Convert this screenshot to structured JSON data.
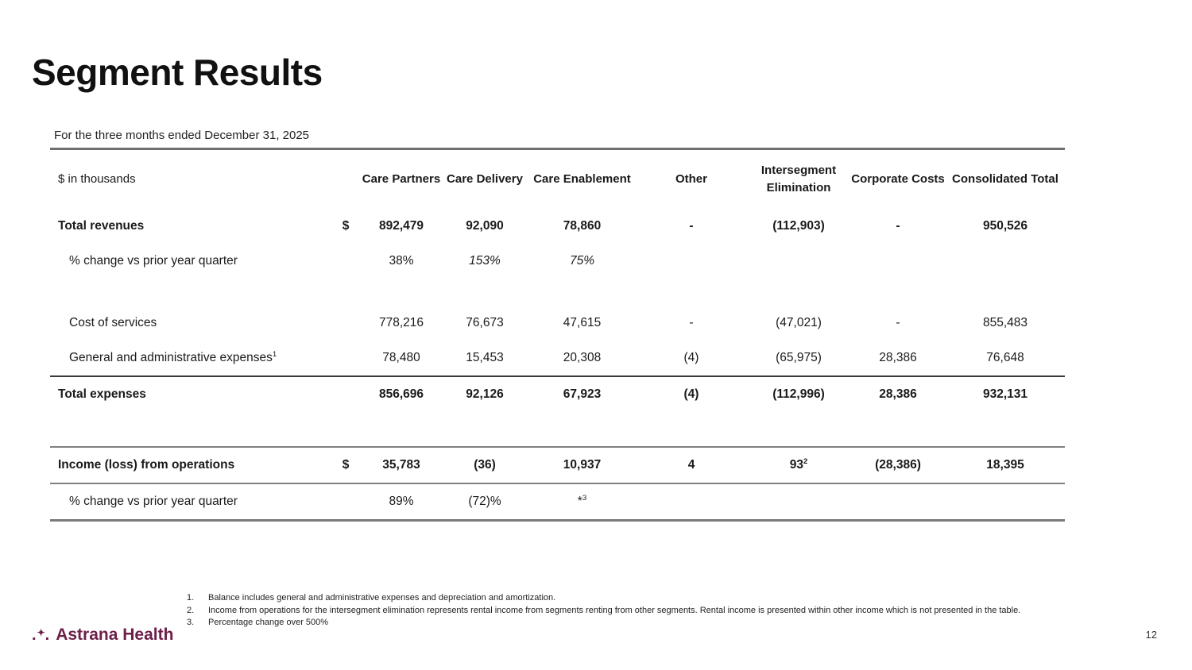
{
  "slide": {
    "title": "Segment Results",
    "subtitle": "For the three months ended December 31, 2025",
    "page_number": "12",
    "logo": {
      "text": "Astrana Health",
      "color": "#6E2049",
      "mark": "dots-and-star"
    }
  },
  "table": {
    "unit_label": "$ in thousands",
    "columns": [
      "Care Partners",
      "Care Delivery",
      "Care Enablement",
      "Other",
      "Intersegment Elimination",
      "Corporate Costs",
      "Consolidated Total"
    ],
    "rows": [
      {
        "type": "row",
        "name": "total-revenues",
        "label": "Total revenues",
        "bold": true,
        "dollar": "$",
        "values": [
          "892,479",
          "92,090",
          "78,860",
          "-",
          "(112,903)",
          "-",
          "950,526"
        ]
      },
      {
        "type": "row",
        "name": "pct-change-revenues",
        "label": "% change vs prior year quarter",
        "indent": true,
        "values": [
          "38%",
          "153%",
          "75%",
          "",
          "",
          "",
          ""
        ],
        "italic_cols": [
          1,
          2
        ]
      },
      {
        "type": "spacer",
        "height": 34
      },
      {
        "type": "row",
        "name": "cost-of-services",
        "label": "Cost of services",
        "indent": true,
        "values": [
          "778,216",
          "76,673",
          "47,615",
          "-",
          "(47,021)",
          "-",
          "855,483"
        ]
      },
      {
        "type": "row",
        "name": "general-admin-expenses",
        "label": "General and administrative expenses^1",
        "indent": true,
        "values": [
          "78,480",
          "15,453",
          "20,308",
          "(4)",
          "(65,975)",
          "28,386",
          "76,648"
        ]
      },
      {
        "type": "divider",
        "style": "dark"
      },
      {
        "type": "row",
        "name": "total-expenses",
        "label": "Total expenses",
        "bold": true,
        "values": [
          "856,696",
          "92,126",
          "67,923",
          "(4)",
          "(112,996)",
          "28,386",
          "932,131"
        ]
      },
      {
        "type": "spacer",
        "height": 43
      },
      {
        "type": "divider",
        "style": "gray"
      },
      {
        "type": "row",
        "name": "income-loss-from-operations",
        "label": "Income (loss) from operations",
        "bold": true,
        "dollar": "$",
        "values": [
          "35,783",
          "(36)",
          "10,937",
          "4",
          "93^2",
          "(28,386)",
          "18,395"
        ]
      },
      {
        "type": "divider",
        "style": "gray"
      },
      {
        "type": "row",
        "name": "pct-change-income",
        "label": "% change vs prior year quarter",
        "indent": true,
        "values": [
          "89%",
          "(72)%",
          "*^3",
          "",
          "",
          "",
          ""
        ]
      },
      {
        "type": "divider",
        "style": "gray-thick"
      }
    ]
  },
  "footnotes": [
    {
      "num": "1.",
      "text": "Balance includes general and administrative expenses and depreciation and amortization."
    },
    {
      "num": "2.",
      "text": "Income from operations for the intersegment elimination represents rental income from segments renting from other segments. Rental income is presented within other income which is not presented in the table."
    },
    {
      "num": "3.",
      "text": "Percentage change over 500%"
    }
  ]
}
